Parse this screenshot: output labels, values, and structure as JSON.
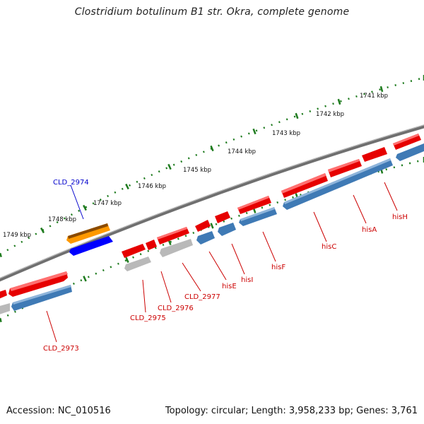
{
  "title": "Clostridium botulinum B1 str. Okra, complete genome",
  "footer": {
    "accession": "Accession: NC_010516",
    "summary": "Topology: circular; Length: 3,958,233 bp; Genes: 3,761"
  },
  "colors": {
    "backbone": "#7a7a7a",
    "tick": "#1e7b1e",
    "cds_red": "#e60000",
    "cds_blue": "#3f7ab5",
    "cds_gray": "#b9b9b9",
    "cds_orange": "#ff9900",
    "cds_navy": "#0000ff",
    "label_red": "#cc0000",
    "label_blue": "#0000cc"
  },
  "scale_labels": [
    "1741 kbp",
    "1742 kbp",
    "1743 kbp",
    "1744 kbp",
    "1745 kbp",
    "1746 kbp",
    "1747 kbp",
    "1748 kbp",
    "1749 kbp"
  ],
  "gene_labels": [
    "CLD_2974",
    "CLD_2973",
    "CLD_2975",
    "CLD_2976",
    "CLD_2977",
    "hisE",
    "hisI",
    "hisF",
    "hisC",
    "hisA",
    "hisH"
  ]
}
